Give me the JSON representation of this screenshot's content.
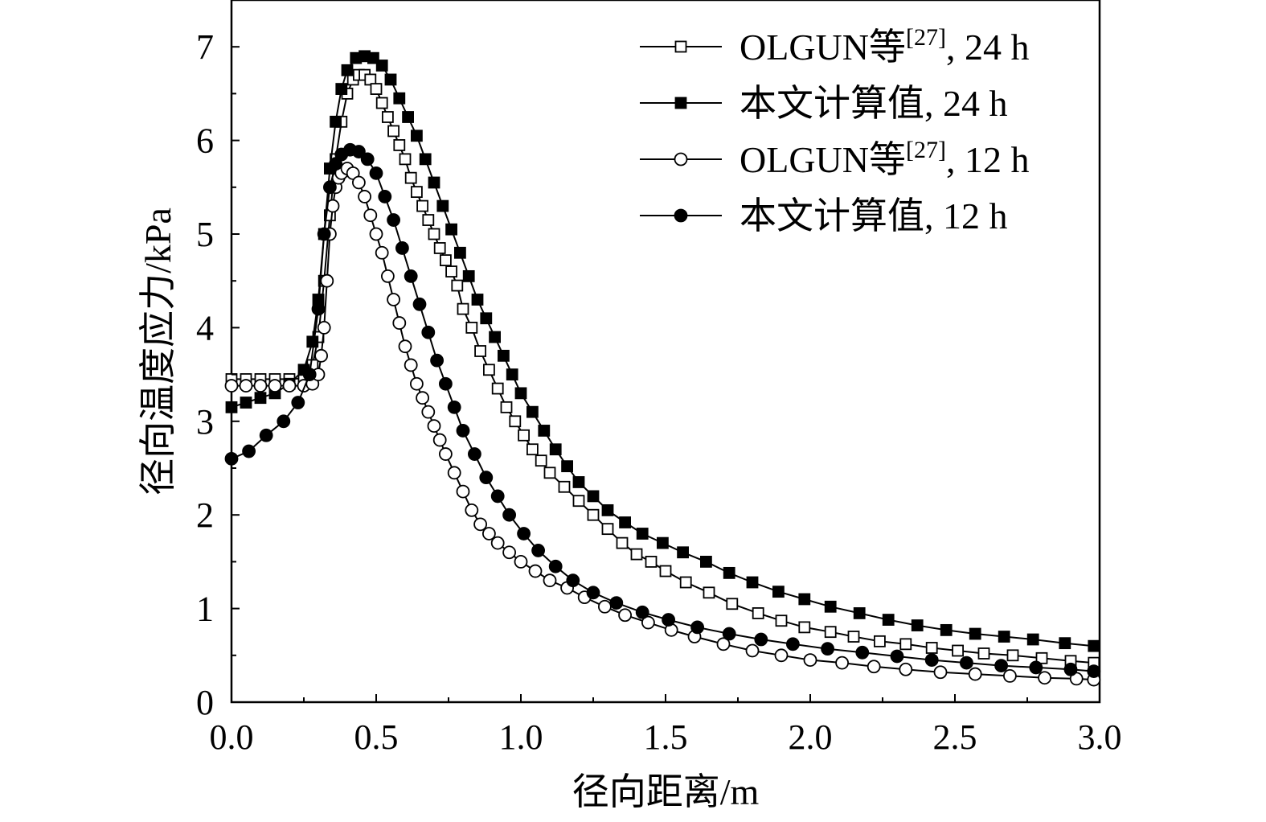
{
  "chart_data": {
    "type": "line",
    "title": "",
    "xlabel": "径向距离/m",
    "ylabel": "径向温度应力/kPa",
    "xlim": [
      0,
      3.0
    ],
    "ylim": [
      0,
      7.5
    ],
    "xticks": [
      "0.0",
      "0.5",
      "1.0",
      "1.5",
      "2.0",
      "2.5",
      "3.0"
    ],
    "yticks": [
      "0",
      "1",
      "2",
      "3",
      "4",
      "5",
      "6",
      "7"
    ],
    "legend_position": "top-right",
    "grid": false,
    "series": [
      {
        "name": "OLGUN等[27], 24 h",
        "name_base": "OLGUN等",
        "name_ref": "[27]",
        "name_tail": ", 24 h",
        "marker": "square-open",
        "x": [
          0.0,
          0.05,
          0.1,
          0.15,
          0.2,
          0.25,
          0.28,
          0.3,
          0.32,
          0.34,
          0.36,
          0.38,
          0.4,
          0.42,
          0.44,
          0.46,
          0.48,
          0.5,
          0.52,
          0.54,
          0.56,
          0.58,
          0.6,
          0.62,
          0.64,
          0.66,
          0.68,
          0.7,
          0.72,
          0.74,
          0.76,
          0.78,
          0.8,
          0.83,
          0.86,
          0.89,
          0.92,
          0.95,
          0.98,
          1.01,
          1.04,
          1.07,
          1.1,
          1.15,
          1.2,
          1.25,
          1.3,
          1.35,
          1.4,
          1.45,
          1.5,
          1.57,
          1.65,
          1.73,
          1.82,
          1.9,
          1.98,
          2.07,
          2.15,
          2.24,
          2.33,
          2.42,
          2.51,
          2.6,
          2.7,
          2.8,
          2.9,
          2.98
        ],
        "y": [
          3.45,
          3.45,
          3.45,
          3.45,
          3.45,
          3.46,
          3.6,
          3.9,
          4.5,
          5.2,
          5.8,
          6.2,
          6.5,
          6.65,
          6.7,
          6.7,
          6.65,
          6.55,
          6.4,
          6.25,
          6.1,
          5.95,
          5.8,
          5.6,
          5.45,
          5.3,
          5.15,
          5.0,
          4.85,
          4.72,
          4.6,
          4.45,
          4.2,
          4.0,
          3.75,
          3.55,
          3.35,
          3.15,
          3.0,
          2.85,
          2.7,
          2.58,
          2.45,
          2.3,
          2.15,
          2.0,
          1.85,
          1.7,
          1.58,
          1.5,
          1.4,
          1.28,
          1.17,
          1.05,
          0.95,
          0.87,
          0.8,
          0.75,
          0.7,
          0.65,
          0.62,
          0.58,
          0.55,
          0.52,
          0.5,
          0.47,
          0.44,
          0.42
        ]
      },
      {
        "name": "本文计算值, 24 h",
        "name_base": "本文计算值",
        "name_ref": "",
        "name_tail": ", 24 h",
        "marker": "square-filled",
        "x": [
          0.0,
          0.05,
          0.1,
          0.15,
          0.2,
          0.25,
          0.28,
          0.3,
          0.32,
          0.34,
          0.36,
          0.38,
          0.4,
          0.43,
          0.46,
          0.49,
          0.52,
          0.55,
          0.58,
          0.61,
          0.64,
          0.67,
          0.7,
          0.73,
          0.76,
          0.79,
          0.82,
          0.85,
          0.88,
          0.91,
          0.94,
          0.97,
          1.0,
          1.04,
          1.08,
          1.12,
          1.16,
          1.2,
          1.25,
          1.3,
          1.36,
          1.42,
          1.49,
          1.56,
          1.64,
          1.72,
          1.8,
          1.89,
          1.98,
          2.07,
          2.17,
          2.27,
          2.37,
          2.47,
          2.57,
          2.67,
          2.77,
          2.88,
          2.98
        ],
        "y": [
          3.15,
          3.2,
          3.25,
          3.3,
          3.4,
          3.55,
          3.85,
          4.3,
          5.0,
          5.7,
          6.2,
          6.55,
          6.75,
          6.88,
          6.9,
          6.88,
          6.8,
          6.65,
          6.45,
          6.25,
          6.05,
          5.8,
          5.55,
          5.3,
          5.05,
          4.8,
          4.55,
          4.3,
          4.1,
          3.9,
          3.7,
          3.5,
          3.3,
          3.1,
          2.9,
          2.7,
          2.52,
          2.35,
          2.2,
          2.05,
          1.92,
          1.8,
          1.7,
          1.6,
          1.5,
          1.38,
          1.28,
          1.18,
          1.1,
          1.02,
          0.95,
          0.88,
          0.82,
          0.77,
          0.73,
          0.7,
          0.67,
          0.63,
          0.6
        ]
      },
      {
        "name": "OLGUN等[27], 12 h",
        "name_base": "OLGUN等",
        "name_ref": "[27]",
        "name_tail": ", 12 h",
        "marker": "circle-open",
        "x": [
          0.0,
          0.05,
          0.1,
          0.15,
          0.2,
          0.25,
          0.28,
          0.3,
          0.31,
          0.32,
          0.33,
          0.34,
          0.35,
          0.36,
          0.37,
          0.38,
          0.4,
          0.42,
          0.44,
          0.46,
          0.48,
          0.5,
          0.52,
          0.54,
          0.56,
          0.58,
          0.6,
          0.62,
          0.64,
          0.66,
          0.68,
          0.7,
          0.72,
          0.74,
          0.77,
          0.8,
          0.83,
          0.86,
          0.89,
          0.92,
          0.96,
          1.0,
          1.05,
          1.1,
          1.16,
          1.22,
          1.29,
          1.36,
          1.44,
          1.52,
          1.6,
          1.7,
          1.8,
          1.9,
          2.0,
          2.11,
          2.22,
          2.33,
          2.45,
          2.57,
          2.69,
          2.81,
          2.92,
          2.98
        ],
        "y": [
          3.38,
          3.38,
          3.38,
          3.38,
          3.38,
          3.38,
          3.4,
          3.5,
          3.7,
          4.0,
          4.5,
          5.0,
          5.3,
          5.5,
          5.6,
          5.65,
          5.7,
          5.65,
          5.55,
          5.4,
          5.2,
          5.0,
          4.8,
          4.55,
          4.3,
          4.05,
          3.8,
          3.6,
          3.4,
          3.25,
          3.1,
          2.95,
          2.8,
          2.65,
          2.45,
          2.25,
          2.05,
          1.9,
          1.8,
          1.7,
          1.6,
          1.5,
          1.4,
          1.3,
          1.22,
          1.12,
          1.02,
          0.93,
          0.85,
          0.77,
          0.7,
          0.62,
          0.55,
          0.5,
          0.45,
          0.42,
          0.38,
          0.35,
          0.32,
          0.3,
          0.28,
          0.26,
          0.25,
          0.24
        ]
      },
      {
        "name": "本文计算值, 12 h",
        "name_base": "本文计算值",
        "name_ref": "",
        "name_tail": ", 12 h",
        "marker": "circle-filled",
        "x": [
          0.0,
          0.06,
          0.12,
          0.18,
          0.23,
          0.27,
          0.3,
          0.32,
          0.34,
          0.36,
          0.38,
          0.41,
          0.44,
          0.47,
          0.5,
          0.53,
          0.56,
          0.59,
          0.62,
          0.65,
          0.68,
          0.71,
          0.74,
          0.77,
          0.8,
          0.84,
          0.88,
          0.92,
          0.96,
          1.01,
          1.06,
          1.12,
          1.18,
          1.25,
          1.33,
          1.42,
          1.51,
          1.61,
          1.72,
          1.83,
          1.94,
          2.06,
          2.18,
          2.3,
          2.42,
          2.54,
          2.66,
          2.78,
          2.9,
          2.98
        ],
        "y": [
          2.6,
          2.68,
          2.85,
          3.0,
          3.2,
          3.5,
          4.2,
          5.0,
          5.5,
          5.75,
          5.85,
          5.9,
          5.88,
          5.8,
          5.65,
          5.4,
          5.15,
          4.85,
          4.55,
          4.25,
          3.95,
          3.65,
          3.4,
          3.15,
          2.9,
          2.65,
          2.4,
          2.2,
          2.0,
          1.8,
          1.62,
          1.45,
          1.3,
          1.17,
          1.06,
          0.96,
          0.88,
          0.8,
          0.73,
          0.67,
          0.62,
          0.57,
          0.53,
          0.49,
          0.45,
          0.42,
          0.39,
          0.37,
          0.35,
          0.33
        ]
      }
    ]
  }
}
